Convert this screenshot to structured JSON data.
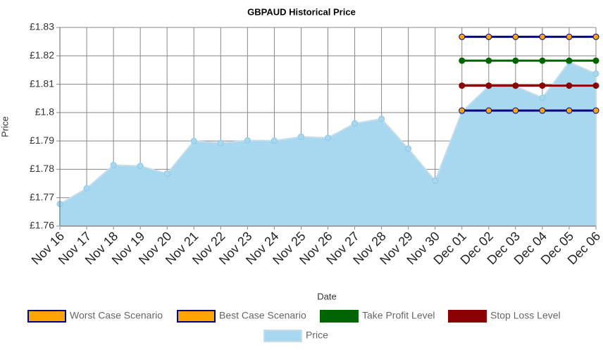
{
  "chart_data": {
    "type": "area",
    "title": "GBPAUD  Historical Price",
    "x_label": "Date",
    "y_label": "Price",
    "categories": [
      "Nov 16",
      "Nov 17",
      "Nov 18",
      "Nov 19",
      "Nov 20",
      "Nov 21",
      "Nov 22",
      "Nov 23",
      "Nov 24",
      "Nov 25",
      "Nov 26",
      "Nov 27",
      "Nov 28",
      "Nov 29",
      "Nov 30",
      "Dec 01",
      "Dec 02",
      "Dec 03",
      "Dec 04",
      "Dec 05",
      "Dec 06"
    ],
    "ylim": [
      1.76,
      1.83
    ],
    "yticks": [
      {
        "value": 1.76,
        "label": "£1.76"
      },
      {
        "value": 1.77,
        "label": "£1.77"
      },
      {
        "value": 1.78,
        "label": "£1.78"
      },
      {
        "value": 1.79,
        "label": "£1.79"
      },
      {
        "value": 1.8,
        "label": "£1.8"
      },
      {
        "value": 1.81,
        "label": "£1.81"
      },
      {
        "value": 1.82,
        "label": "£1.82"
      },
      {
        "value": 1.83,
        "label": "£1.83"
      }
    ],
    "grid": true,
    "series": [
      {
        "name": "Worst Case Scenario",
        "type": "line",
        "color": "#000080",
        "marker_color": "#ffa500",
        "values": [
          null,
          null,
          null,
          null,
          null,
          null,
          null,
          null,
          null,
          null,
          null,
          null,
          null,
          null,
          null,
          1.8007,
          1.8007,
          1.8007,
          1.8007,
          1.8007,
          1.8007
        ]
      },
      {
        "name": "Best Case Scenario",
        "type": "line",
        "color": "#000080",
        "marker_color": "#ffa500",
        "values": [
          null,
          null,
          null,
          null,
          null,
          null,
          null,
          null,
          null,
          null,
          null,
          null,
          null,
          null,
          null,
          1.8267,
          1.8267,
          1.8267,
          1.8267,
          1.8267,
          1.8267
        ]
      },
      {
        "name": "Take Profit Level",
        "type": "line",
        "color": "#006400",
        "marker_color": "#006400",
        "values": [
          null,
          null,
          null,
          null,
          null,
          null,
          null,
          null,
          null,
          null,
          null,
          null,
          null,
          null,
          null,
          1.8183,
          1.8183,
          1.8183,
          1.8183,
          1.8183,
          1.8183
        ]
      },
      {
        "name": "Stop Loss Level",
        "type": "line",
        "color": "#8b0000",
        "marker_color": "#8b0000",
        "values": [
          null,
          null,
          null,
          null,
          null,
          null,
          null,
          null,
          null,
          null,
          null,
          null,
          null,
          null,
          null,
          1.8095,
          1.8095,
          1.8095,
          1.8095,
          1.8095,
          1.8095
        ]
      },
      {
        "name": "Price",
        "type": "area",
        "color": "#a7d8f0",
        "marker_color": "#a7d8f0",
        "values": [
          1.7678,
          1.7733,
          1.7815,
          1.7812,
          1.7785,
          1.79,
          1.7893,
          1.7902,
          1.7901,
          1.7915,
          1.7911,
          1.7962,
          1.7978,
          1.7873,
          1.776,
          1.8003,
          1.8093,
          1.8093,
          1.8052,
          1.8178,
          1.8137
        ]
      }
    ]
  }
}
